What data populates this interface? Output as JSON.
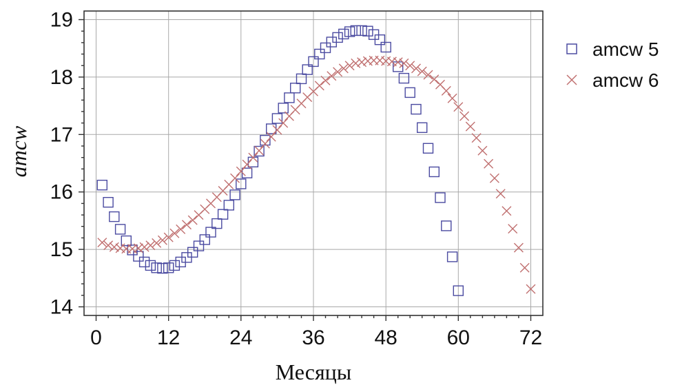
{
  "chart_data": {
    "type": "scatter",
    "title": "",
    "xlabel": "Месяцы",
    "ylabel": "amcw",
    "xlim": [
      -2,
      74
    ],
    "ylim": [
      13.85,
      19.15
    ],
    "xticks": [
      0,
      12,
      24,
      36,
      48,
      60,
      72
    ],
    "yticks": [
      14,
      15,
      16,
      17,
      18,
      19
    ],
    "xtick_labels": [
      "0",
      "12",
      "24",
      "36",
      "48",
      "60",
      "72"
    ],
    "ytick_labels": [
      "14",
      "15",
      "16",
      "17",
      "18",
      "19"
    ],
    "grid": true,
    "legend_position": "right",
    "series": [
      {
        "name": "amcw 5",
        "marker": "square",
        "color": "#4a4aa0",
        "x": [
          1,
          2,
          3,
          4,
          5,
          6,
          7,
          8,
          9,
          10,
          11,
          12,
          13,
          14,
          15,
          16,
          17,
          18,
          19,
          20,
          21,
          22,
          23,
          24,
          25,
          26,
          27,
          28,
          29,
          30,
          31,
          32,
          33,
          34,
          35,
          36,
          37,
          38,
          39,
          40,
          41,
          42,
          43,
          44,
          45,
          46,
          47,
          48,
          50,
          51,
          52,
          53,
          54,
          55,
          56,
          57,
          58,
          59,
          60
        ],
        "y": [
          16.12,
          15.82,
          15.57,
          15.35,
          15.15,
          14.99,
          14.88,
          14.78,
          14.72,
          14.68,
          14.67,
          14.68,
          14.72,
          14.78,
          14.86,
          14.95,
          15.06,
          15.17,
          15.3,
          15.45,
          15.61,
          15.77,
          15.95,
          16.14,
          16.33,
          16.52,
          16.71,
          16.9,
          17.1,
          17.28,
          17.46,
          17.64,
          17.81,
          17.97,
          18.13,
          18.27,
          18.4,
          18.51,
          18.61,
          18.69,
          18.75,
          18.79,
          18.81,
          18.81,
          18.8,
          18.74,
          18.65,
          18.52,
          18.18,
          17.98,
          17.73,
          17.44,
          17.12,
          16.76,
          16.35,
          15.9,
          15.41,
          14.87,
          14.28
        ]
      },
      {
        "name": "amcw 6",
        "marker": "x",
        "color": "#c07070",
        "x": [
          1,
          2,
          3,
          4,
          5,
          6,
          7,
          8,
          9,
          10,
          11,
          12,
          13,
          14,
          15,
          16,
          17,
          18,
          19,
          20,
          21,
          22,
          23,
          24,
          25,
          26,
          27,
          28,
          29,
          30,
          31,
          32,
          33,
          34,
          35,
          36,
          37,
          38,
          39,
          40,
          41,
          42,
          43,
          44,
          45,
          46,
          47,
          48,
          49,
          50,
          51,
          52,
          53,
          54,
          55,
          56,
          57,
          58,
          59,
          60,
          61,
          62,
          63,
          64,
          65,
          66,
          67,
          68,
          69,
          70,
          71,
          72
        ],
        "y": [
          15.12,
          15.07,
          15.04,
          15.02,
          15.01,
          15.01,
          15.02,
          15.04,
          15.07,
          15.11,
          15.16,
          15.21,
          15.28,
          15.35,
          15.43,
          15.51,
          15.6,
          15.7,
          15.8,
          15.91,
          16.02,
          16.13,
          16.24,
          16.36,
          16.48,
          16.6,
          16.72,
          16.84,
          16.96,
          17.08,
          17.2,
          17.32,
          17.43,
          17.54,
          17.65,
          17.75,
          17.85,
          17.94,
          18.02,
          18.09,
          18.15,
          18.2,
          18.24,
          18.26,
          18.28,
          18.29,
          18.29,
          18.28,
          18.27,
          18.26,
          18.24,
          18.2,
          18.15,
          18.1,
          18.04,
          17.96,
          17.87,
          17.76,
          17.63,
          17.48,
          17.32,
          17.14,
          16.94,
          16.72,
          16.49,
          16.24,
          15.97,
          15.67,
          15.36,
          15.03,
          14.68,
          14.31
        ]
      }
    ]
  }
}
